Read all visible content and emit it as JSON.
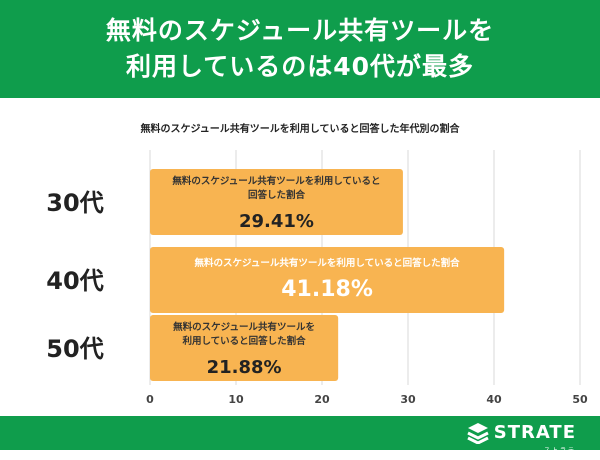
{
  "header": {
    "line1": "無料のスケジュール共有ツールを",
    "line2": "利用しているのは40代が最多"
  },
  "brand": {
    "name": "STRATE",
    "sub": "ストラテ"
  },
  "colors": {
    "accent_green": "#0f9d4c",
    "bar_orange": "#f8b451",
    "grid": "#d9d9d9"
  },
  "chart_data": {
    "type": "bar",
    "orientation": "horizontal",
    "title": "無料のスケジュール共有ツールを利用していると回答した年代別の割合",
    "categories": [
      "30代",
      "40代",
      "50代"
    ],
    "values": [
      29.41,
      41.18,
      21.88
    ],
    "value_labels": [
      "29.41%",
      "41.18%",
      "21.88%"
    ],
    "bar_captions": [
      [
        "無料のスケジュール共有ツールを利用していると",
        "回答した割合"
      ],
      [
        "無料のスケジュール共有ツールを利用していると回答した割合"
      ],
      [
        "無料のスケジュール共有ツールを",
        "利用していると回答した割合"
      ]
    ],
    "xlim": [
      0,
      50
    ],
    "xticks": [
      0,
      10,
      20,
      30,
      40,
      50
    ],
    "grid": true,
    "xlabel": "",
    "ylabel": ""
  }
}
